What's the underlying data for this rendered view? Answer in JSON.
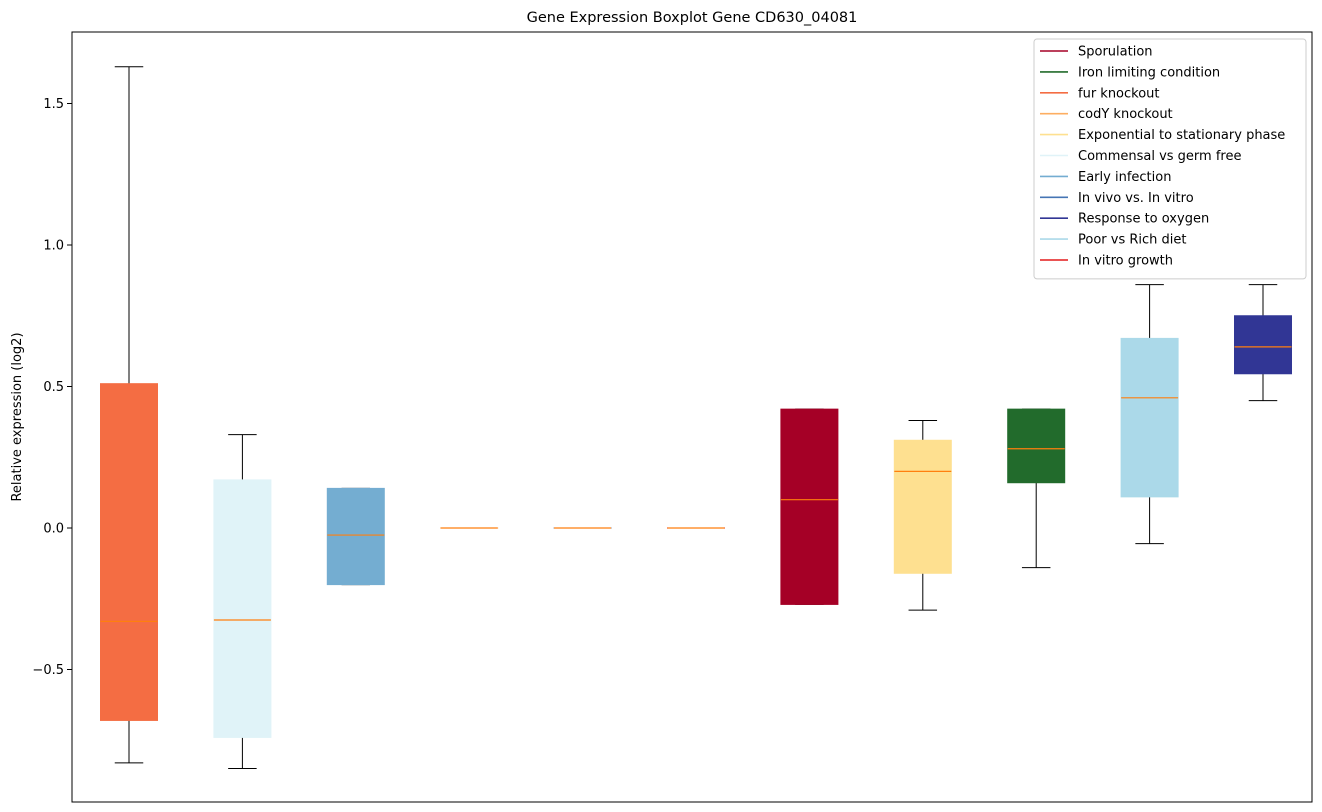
{
  "chart_data": {
    "type": "boxplot",
    "title": "Gene Expression Boxplot Gene CD630_04081",
    "xlabel": "",
    "ylabel": "Relative expression (log2)",
    "ylim": [
      -0.97,
      1.75
    ],
    "yticks": [
      -0.5,
      0.0,
      0.5,
      1.0,
      1.5
    ],
    "ytick_labels": [
      "−0.5",
      "0.0",
      "0.5",
      "1.0",
      "1.5"
    ],
    "grid": false,
    "legend_position": "top-right",
    "median_color": "#ff7f0e",
    "legend": [
      {
        "label": "Sporulation",
        "color": "#a50026"
      },
      {
        "label": "Iron limiting condition",
        "color": "#226b2c"
      },
      {
        "label": "fur knockout",
        "color": "#f46d43"
      },
      {
        "label": "codY knockout",
        "color": "#fdae61"
      },
      {
        "label": "Exponential to stationary phase",
        "color": "#fee090"
      },
      {
        "label": "Commensal vs germ free",
        "color": "#e0f3f8"
      },
      {
        "label": "Early infection",
        "color": "#74add1"
      },
      {
        "label": "In vivo vs. In vitro",
        "color": "#4575b4"
      },
      {
        "label": "Response to oxygen",
        "color": "#313695"
      },
      {
        "label": "Poor vs Rich diet",
        "color": "#abd9e9"
      },
      {
        "label": "In vitro growth",
        "color": "#e41a1c"
      }
    ],
    "boxes": [
      {
        "group": "fur knockout",
        "color": "#f46d43",
        "whislo": -0.83,
        "q1": -0.68,
        "med": -0.33,
        "q3": 0.51,
        "whishi": 1.63
      },
      {
        "group": "Commensal vs germ free",
        "color": "#e0f3f8",
        "whislo": -0.85,
        "q1": -0.74,
        "med": -0.325,
        "q3": 0.17,
        "whishi": 0.33
      },
      {
        "group": "Early infection",
        "color": "#74add1",
        "whislo": -0.2,
        "q1": -0.2,
        "med": -0.025,
        "q3": 0.14,
        "whishi": 0.14
      },
      {
        "group": "codY knockout",
        "color": "#fdae61",
        "whislo": 0.0,
        "q1": 0.0,
        "med": 0.0,
        "q3": 0.0,
        "whishi": 0.0
      },
      {
        "group": "In vivo vs. In vitro",
        "color": "#4575b4",
        "whislo": 0.0,
        "q1": 0.0,
        "med": 0.0,
        "q3": 0.0,
        "whishi": 0.0
      },
      {
        "group": "In vitro growth",
        "color": "#e41a1c",
        "whislo": 0.0,
        "q1": 0.0,
        "med": 0.0,
        "q3": 0.0,
        "whishi": 0.0
      },
      {
        "group": "Sporulation",
        "color": "#a50026",
        "whislo": -0.27,
        "q1": -0.27,
        "med": 0.1,
        "q3": 0.42,
        "whishi": 0.42
      },
      {
        "group": "Exponential to stationary phase",
        "color": "#fee090",
        "whislo": -0.29,
        "q1": -0.16,
        "med": 0.2,
        "q3": 0.31,
        "whishi": 0.38
      },
      {
        "group": "Iron limiting condition",
        "color": "#226b2c",
        "whislo": -0.14,
        "q1": 0.16,
        "med": 0.28,
        "q3": 0.42,
        "whishi": 0.42
      },
      {
        "group": "Poor vs Rich diet",
        "color": "#abd9e9",
        "whislo": -0.055,
        "q1": 0.11,
        "med": 0.46,
        "q3": 0.67,
        "whishi": 0.86
      },
      {
        "group": "Response to oxygen",
        "color": "#313695",
        "whislo": 0.45,
        "q1": 0.545,
        "med": 0.64,
        "q3": 0.75,
        "whishi": 0.86
      }
    ]
  }
}
